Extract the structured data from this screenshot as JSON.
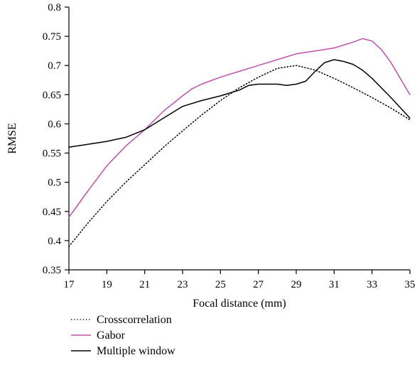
{
  "chart_data": {
    "type": "line",
    "title": "",
    "xlabel": "Focal distance (mm)",
    "ylabel": "RMSE",
    "xlim": [
      17,
      35
    ],
    "ylim": [
      0.35,
      0.8
    ],
    "xticks": [
      17,
      19,
      21,
      23,
      25,
      27,
      29,
      31,
      33,
      35
    ],
    "xtick_labels": [
      "17",
      "19",
      "21",
      "23",
      "25",
      "27",
      "29",
      "31",
      "33",
      "35"
    ],
    "yticks": [
      0.35,
      0.4,
      0.45,
      0.5,
      0.55,
      0.6,
      0.65,
      0.7,
      0.75,
      0.8
    ],
    "ytick_labels": [
      "0.35",
      "0.4",
      "0.45",
      "0.5",
      "0.55",
      "0.6",
      "0.65",
      "0.7",
      "0.75",
      "0.8"
    ],
    "grid": false,
    "legend_position": "bottom-left",
    "series": [
      {
        "name": "Crosscorrelation",
        "color": "#000000",
        "dash": "dotted",
        "x": [
          17,
          18,
          19,
          20,
          21,
          22,
          23,
          24,
          25,
          26,
          27,
          28,
          29,
          30,
          31,
          32,
          33,
          34,
          35
        ],
        "y": [
          0.39,
          0.43,
          0.467,
          0.5,
          0.53,
          0.56,
          0.588,
          0.615,
          0.64,
          0.662,
          0.68,
          0.695,
          0.7,
          0.692,
          0.678,
          0.662,
          0.645,
          0.627,
          0.607
        ]
      },
      {
        "name": "Gabor",
        "color": "#c050b0",
        "dash": "solid",
        "x": [
          17,
          18,
          19,
          20,
          21,
          22,
          23,
          23.5,
          24,
          25,
          26,
          27,
          28,
          29,
          30,
          31,
          32,
          32.5,
          33,
          33.5,
          34,
          35
        ],
        "y": [
          0.44,
          0.485,
          0.528,
          0.562,
          0.59,
          0.622,
          0.648,
          0.66,
          0.668,
          0.68,
          0.69,
          0.7,
          0.71,
          0.72,
          0.725,
          0.73,
          0.74,
          0.746,
          0.742,
          0.727,
          0.705,
          0.65
        ]
      },
      {
        "name": "Multiple window",
        "color": "#000000",
        "dash": "solid",
        "x": [
          17,
          18,
          19,
          20,
          21,
          22,
          23,
          24,
          25,
          26,
          26.5,
          27,
          28,
          28.5,
          29,
          29.5,
          30,
          30.5,
          31,
          31.5,
          32,
          32.5,
          33,
          34,
          35
        ],
        "y": [
          0.56,
          0.565,
          0.57,
          0.577,
          0.59,
          0.61,
          0.63,
          0.64,
          0.648,
          0.658,
          0.666,
          0.668,
          0.668,
          0.666,
          0.668,
          0.673,
          0.69,
          0.705,
          0.71,
          0.707,
          0.702,
          0.692,
          0.678,
          0.645,
          0.61
        ]
      }
    ]
  }
}
